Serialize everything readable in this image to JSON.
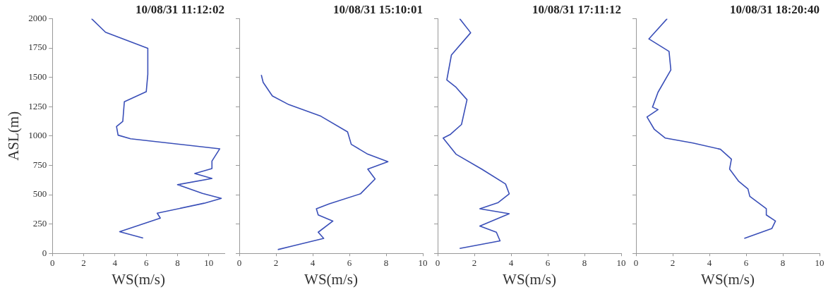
{
  "chart_data": [
    {
      "type": "line",
      "title": "10/08/31 11:12:02",
      "xlabel": "WS(m/s)",
      "ylabel": "ASL(m)",
      "xlim": [
        0,
        11
      ],
      "xticks": [
        0,
        2,
        4,
        6,
        8,
        10
      ],
      "ylim": [
        0,
        2000
      ],
      "yticks": [
        0,
        250,
        500,
        750,
        1000,
        1250,
        1500,
        1750,
        2000
      ],
      "grid": false,
      "legend": false,
      "marker": "none",
      "line_style": "solid",
      "series": [
        {
          "color": "#3a4fb8",
          "x": [
            2.5,
            3.4,
            6.1,
            6.1,
            6.0,
            4.6,
            4.5,
            4.1,
            4.2,
            5.0,
            10.7,
            10.2,
            10.2,
            9.1,
            10.2,
            8.0,
            9.6,
            10.8,
            9.7,
            6.7,
            6.9,
            4.3,
            5.8
          ],
          "values": [
            2000,
            1884,
            1747,
            1525,
            1377,
            1292,
            1124,
            1081,
            1007,
            976,
            891,
            786,
            722,
            680,
            638,
            585,
            511,
            469,
            427,
            342,
            300,
            184,
            131
          ]
        }
      ]
    },
    {
      "type": "line",
      "title": "10/08/31 15:10:01",
      "xlabel": "WS(m/s)",
      "xlim": [
        0,
        10
      ],
      "xticks": [
        0,
        2,
        4,
        6,
        8,
        10
      ],
      "ylim": [
        0,
        2000
      ],
      "yticks": [
        0,
        250,
        500,
        750,
        1000,
        1250,
        1500,
        1750,
        2000
      ],
      "tick_labels": "x",
      "grid": false,
      "legend": false,
      "marker": "none",
      "line_style": "solid",
      "series": [
        {
          "color": "#3a4fb8",
          "x": [
            1.2,
            1.3,
            1.8,
            2.7,
            4.4,
            5.9,
            6.1,
            7.0,
            8.1,
            7.0,
            7.4,
            6.6,
            4.9,
            4.2,
            4.3,
            5.1,
            4.3,
            4.6,
            2.9,
            2.1
          ],
          "values": [
            1520,
            1457,
            1341,
            1267,
            1172,
            1035,
            929,
            845,
            781,
            718,
            634,
            507,
            422,
            380,
            327,
            275,
            180,
            127,
            63,
            32
          ]
        }
      ]
    },
    {
      "type": "line",
      "title": "10/08/31 17:11:12",
      "xlabel": "WS(m/s)",
      "xlim": [
        0,
        10
      ],
      "xticks": [
        0,
        2,
        4,
        6,
        8,
        10
      ],
      "ylim": [
        0,
        2000
      ],
      "yticks": [
        0,
        250,
        500,
        750,
        1000,
        1250,
        1500,
        1750,
        2000
      ],
      "tick_labels": "x",
      "grid": false,
      "legend": false,
      "marker": "none",
      "line_style": "solid",
      "series": [
        {
          "color": "#3a4fb8",
          "x": [
            1.2,
            1.8,
            0.75,
            0.5,
            1.0,
            1.6,
            1.3,
            0.7,
            0.3,
            1.0,
            2.4,
            3.7,
            3.9,
            3.3,
            2.3,
            3.9,
            2.3,
            3.2,
            3.4,
            1.2
          ],
          "values": [
            2000,
            1880,
            1690,
            1478,
            1415,
            1309,
            1098,
            1014,
            982,
            845,
            718,
            591,
            507,
            433,
            380,
            338,
            232,
            180,
            106,
            42
          ]
        }
      ]
    },
    {
      "type": "line",
      "title": "10/08/31 18:20:40",
      "xlabel": "WS(m/s)",
      "xlim": [
        0,
        10
      ],
      "xticks": [
        0,
        2,
        4,
        6,
        8,
        10
      ],
      "ylim": [
        0,
        2000
      ],
      "yticks": [
        0,
        250,
        500,
        750,
        1000,
        1250,
        1500,
        1750,
        2000
      ],
      "tick_labels": "x",
      "grid": false,
      "legend": false,
      "marker": "none",
      "line_style": "solid",
      "series": [
        {
          "color": "#3a4fb8",
          "x": [
            1.7,
            0.7,
            1.8,
            1.9,
            1.2,
            0.9,
            1.2,
            0.6,
            1.0,
            1.6,
            3.1,
            4.6,
            5.2,
            5.1,
            5.6,
            6.1,
            6.2,
            7.1,
            7.1,
            7.6,
            7.4,
            5.9
          ],
          "values": [
            2000,
            1827,
            1721,
            1563,
            1373,
            1246,
            1225,
            1162,
            1056,
            982,
            940,
            887,
            803,
            718,
            613,
            549,
            486,
            380,
            327,
            275,
            211,
            127
          ]
        }
      ]
    }
  ]
}
